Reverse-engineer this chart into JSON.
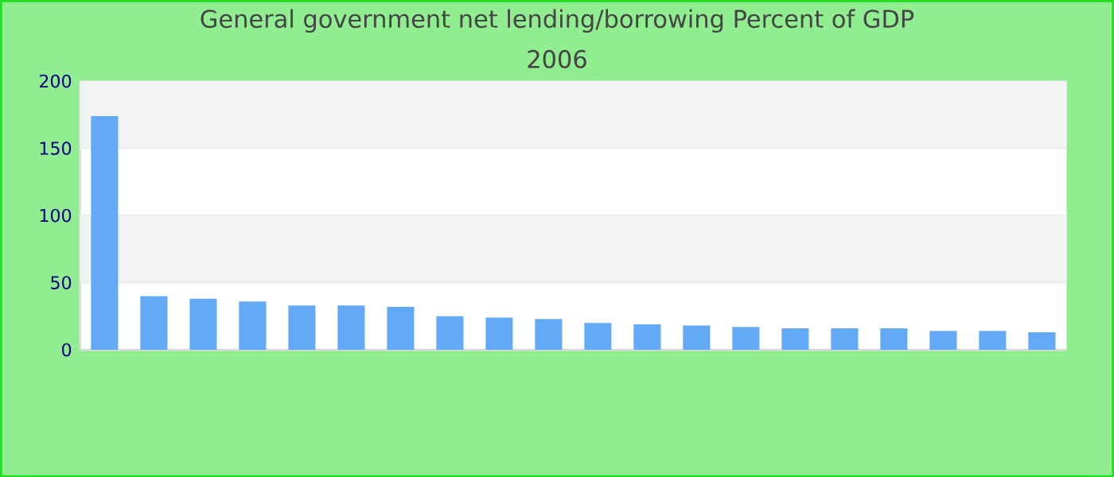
{
  "chart_data": {
    "type": "bar",
    "title": "General government net lending/borrowing  Percent of GDP",
    "subtitle": "2006",
    "categories": [
      null,
      null,
      null,
      null,
      null,
      null,
      null,
      null,
      null,
      null,
      null,
      null,
      null,
      null,
      null,
      null,
      null,
      null,
      null,
      null
    ],
    "values": [
      174,
      40,
      38,
      36,
      33,
      33,
      32,
      25,
      24,
      23,
      20,
      19,
      18,
      17,
      16,
      16,
      16,
      14,
      14,
      13
    ],
    "color": "#63a9f5",
    "ylim": [
      0,
      200
    ],
    "yticks": [
      0,
      50,
      100,
      150,
      200
    ],
    "grid": "y"
  }
}
